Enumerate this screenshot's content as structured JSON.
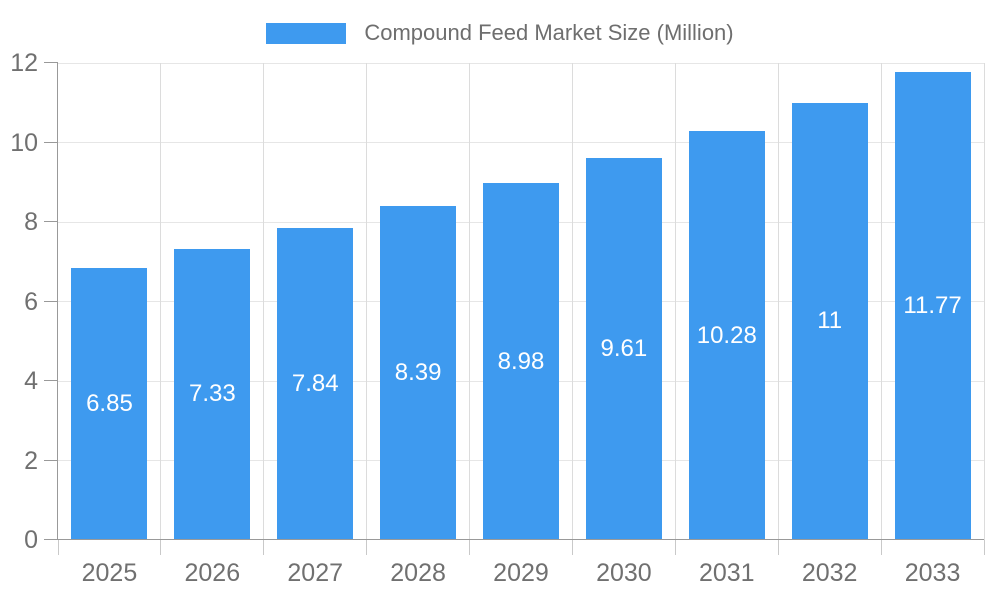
{
  "legend": {
    "label": "Compound Feed Market Size (Million)"
  },
  "chart_data": {
    "type": "bar",
    "title": "",
    "series_name": "Compound Feed Market Size (Million)",
    "categories": [
      "2025",
      "2026",
      "2027",
      "2028",
      "2029",
      "2030",
      "2031",
      "2032",
      "2033"
    ],
    "values": [
      6.85,
      7.33,
      7.84,
      8.39,
      8.98,
      9.61,
      10.28,
      11,
      11.77
    ],
    "xlabel": "",
    "ylabel": "",
    "ylim": [
      0,
      12
    ],
    "yticks": [
      0,
      2,
      4,
      6,
      8,
      10,
      12
    ],
    "grid": true,
    "legend_position": "top",
    "value_labels": "inside-center"
  },
  "colors": {
    "bar": "#3e9aef",
    "bar_label": "#ffffff",
    "axis": "#999999",
    "x_tick": "#c9c9c9",
    "grid_h": "#e6e6e6",
    "grid_v": "#dcdcdc",
    "tick_text": "#707070",
    "legend_text": "#6e6e6e"
  }
}
